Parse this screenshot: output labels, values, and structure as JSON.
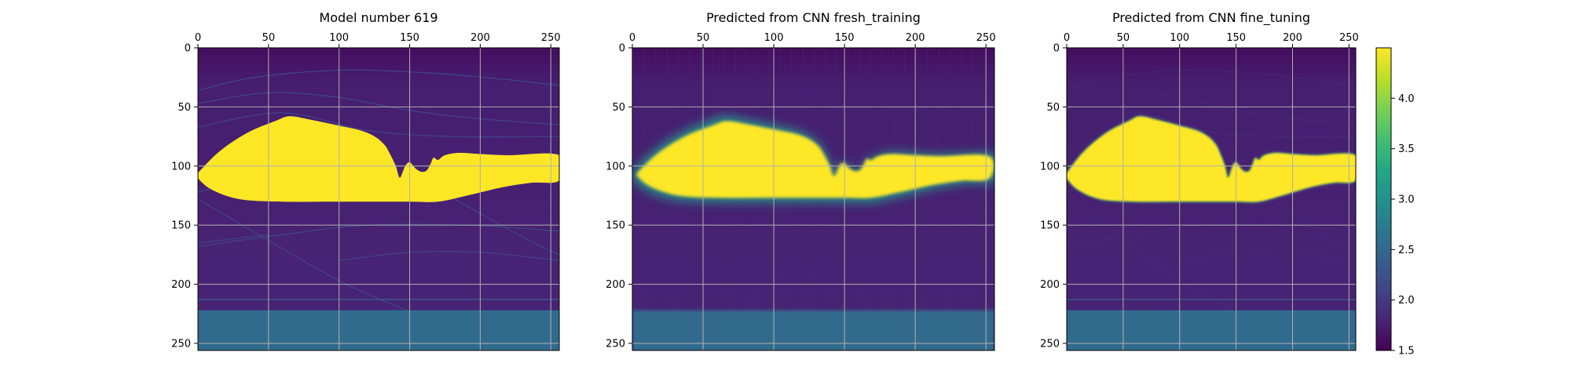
{
  "chart_data": {
    "type": "heatmap",
    "figure_grid": true,
    "panels": [
      {
        "title": "Model number 619",
        "kind": "ground_truth",
        "xlim": [
          0,
          256
        ],
        "ylim": [
          256,
          0
        ],
        "xticks": [
          0,
          50,
          100,
          150,
          200,
          250
        ],
        "yticks": [
          0,
          50,
          100,
          150,
          200,
          250
        ]
      },
      {
        "title": "Predicted from CNN fresh_training",
        "kind": "prediction_blurry",
        "xlim": [
          0,
          256
        ],
        "ylim": [
          256,
          0
        ],
        "xticks": [
          0,
          50,
          100,
          150,
          200,
          250
        ],
        "yticks": [
          0,
          50,
          100,
          150,
          200,
          250
        ]
      },
      {
        "title": "Predicted from CNN fine_tuning",
        "kind": "prediction_sharp",
        "xlim": [
          0,
          256
        ],
        "ylim": [
          256,
          0
        ],
        "xticks": [
          0,
          50,
          100,
          150,
          200,
          250
        ],
        "yticks": [
          0,
          50,
          100,
          150,
          200,
          250
        ]
      }
    ],
    "colorbar": {
      "colormap": "viridis",
      "range": [
        1.5,
        4.5
      ],
      "ticks": [
        1.5,
        2.0,
        2.5,
        3.0,
        3.5,
        4.0
      ],
      "tick_labels": [
        "1.5",
        "2.0",
        "2.5",
        "3.0",
        "3.5",
        "4.0"
      ]
    },
    "field": {
      "background_value": 1.75,
      "top_value": 1.6,
      "bottom_layer_value": 2.55,
      "bottom_layer_start_y": 222,
      "thin_line_y": 213,
      "body_value": 4.5,
      "body_outline": [
        [
          0,
          106
        ],
        [
          15,
          88
        ],
        [
          35,
          72
        ],
        [
          55,
          62
        ],
        [
          65,
          58
        ],
        [
          80,
          61
        ],
        [
          100,
          66
        ],
        [
          115,
          70
        ],
        [
          125,
          75
        ],
        [
          132,
          82
        ],
        [
          136,
          90
        ],
        [
          140,
          100
        ],
        [
          143,
          110
        ],
        [
          147,
          100
        ],
        [
          150,
          97
        ],
        [
          154,
          102
        ],
        [
          158,
          105
        ],
        [
          162,
          104
        ],
        [
          165,
          98
        ],
        [
          167,
          93
        ],
        [
          170,
          95
        ],
        [
          175,
          91
        ],
        [
          185,
          89
        ],
        [
          200,
          90
        ],
        [
          220,
          91
        ],
        [
          256,
          91
        ],
        [
          256,
          112
        ],
        [
          236,
          114
        ],
        [
          215,
          118
        ],
        [
          190,
          125
        ],
        [
          170,
          130
        ],
        [
          150,
          130
        ],
        [
          120,
          130
        ],
        [
          90,
          130
        ],
        [
          60,
          130
        ],
        [
          30,
          128
        ],
        [
          10,
          120
        ],
        [
          0,
          110
        ]
      ],
      "strata_value": 2.05,
      "strata_curves": [
        [
          [
            0,
            36
          ],
          [
            40,
            25
          ],
          [
            100,
            19
          ],
          [
            160,
            21
          ],
          [
            220,
            27
          ],
          [
            256,
            32
          ]
        ],
        [
          [
            0,
            47
          ],
          [
            50,
            38
          ],
          [
            100,
            42
          ],
          [
            150,
            53
          ],
          [
            200,
            60
          ],
          [
            256,
            65
          ]
        ],
        [
          [
            0,
            67
          ],
          [
            60,
            55
          ],
          [
            120,
            70
          ],
          [
            180,
            75
          ],
          [
            256,
            75
          ]
        ],
        [
          [
            0,
            122
          ],
          [
            80,
            100
          ],
          [
            160,
            100
          ],
          [
            256,
            100
          ]
        ],
        [
          [
            0,
            168
          ],
          [
            60,
            158
          ],
          [
            120,
            150
          ],
          [
            190,
            150
          ],
          [
            256,
            155
          ]
        ],
        [
          [
            100,
            180
          ],
          [
            150,
            173
          ],
          [
            200,
            173
          ],
          [
            256,
            180
          ]
        ],
        [
          [
            0,
            165
          ],
          [
            50,
            158
          ]
        ],
        [
          [
            0,
            128
          ],
          [
            60,
            170
          ],
          [
            105,
            200
          ],
          [
            150,
            223
          ]
        ],
        [
          [
            170,
            120
          ],
          [
            230,
            160
          ],
          [
            256,
            175
          ]
        ]
      ]
    }
  }
}
